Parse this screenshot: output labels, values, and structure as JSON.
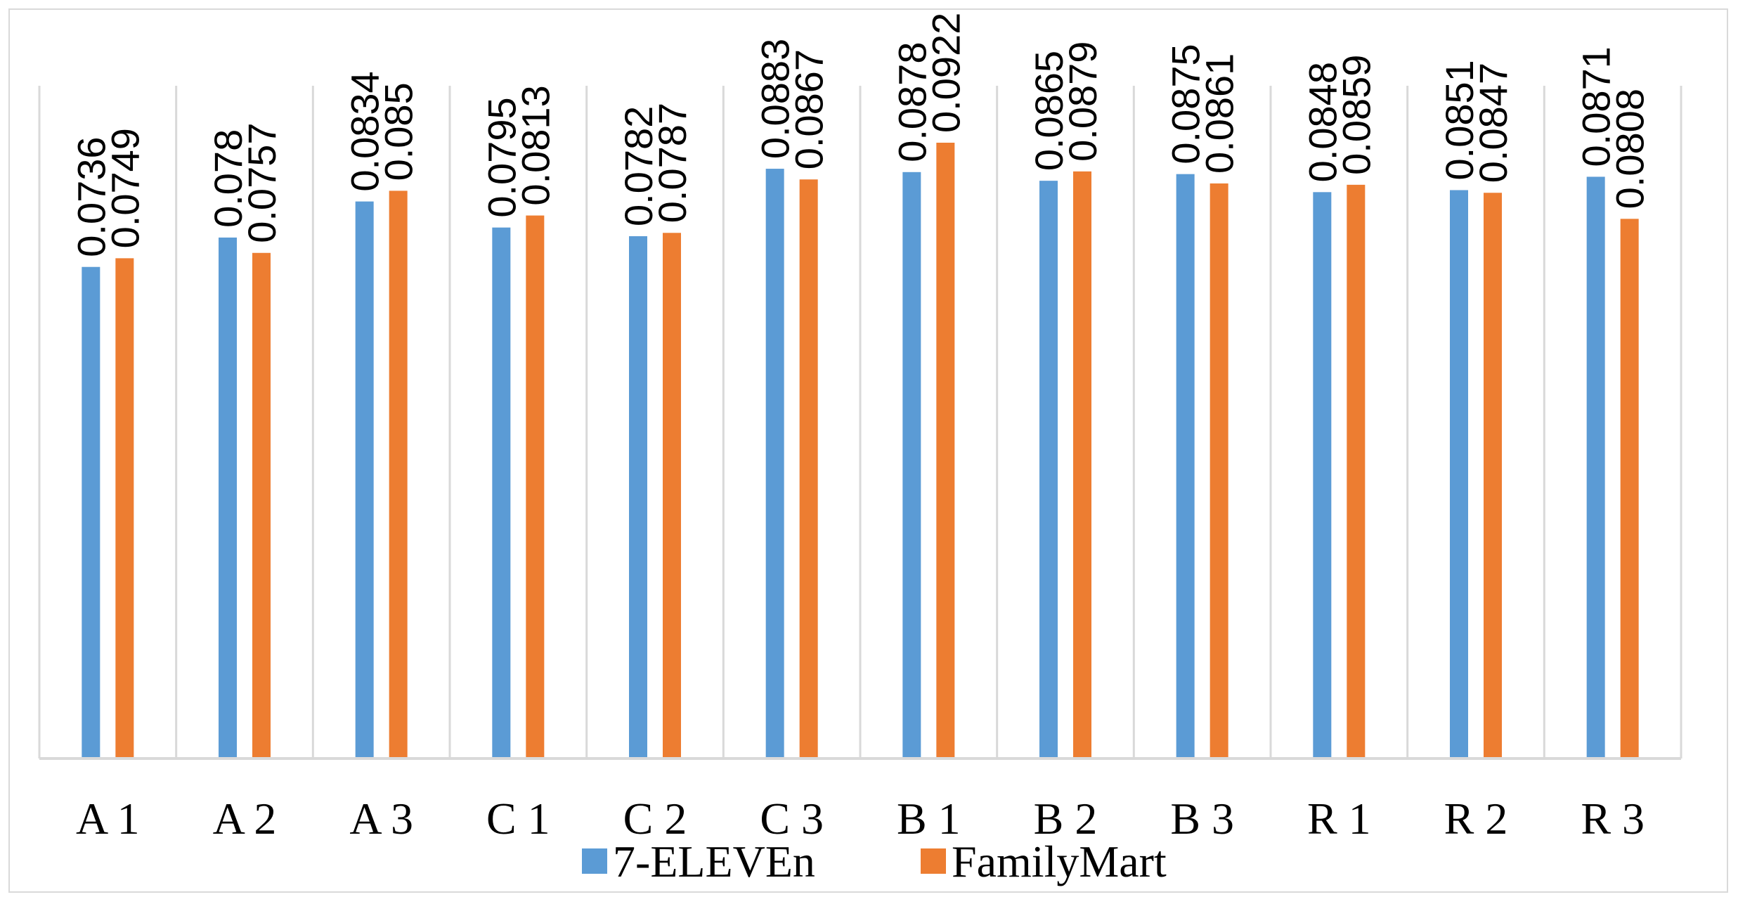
{
  "chart_data": {
    "type": "bar",
    "title": "",
    "xlabel": "",
    "ylabel": "",
    "categories": [
      "A 1",
      "A 2",
      "A 3",
      "C 1",
      "C 2",
      "C 3",
      "B 1",
      "B 2",
      "B 3",
      "R 1",
      "R 2",
      "R 3"
    ],
    "series": [
      {
        "name": "7-ELEVEn",
        "color": "#5b9bd5",
        "values": [
          0.0736,
          0.078,
          0.0834,
          0.0795,
          0.0782,
          0.0883,
          0.0878,
          0.0865,
          0.0875,
          0.0848,
          0.0851,
          0.0871
        ],
        "labels": [
          "0.0736",
          "0.078",
          "0.0834",
          "0.0795",
          "0.0782",
          "0.0883",
          "0.0878",
          "0.0865",
          "0.0875",
          "0.0848",
          "0.0851",
          "0.0871"
        ]
      },
      {
        "name": "FamilyMart",
        "color": "#ed7d31",
        "values": [
          0.0749,
          0.0757,
          0.085,
          0.0813,
          0.0787,
          0.0867,
          0.0922,
          0.0879,
          0.0861,
          0.0859,
          0.0847,
          0.0808
        ],
        "labels": [
          "0.0749",
          "0.0757",
          "0.085",
          "0.0813",
          "0.0787",
          "0.0867",
          "0.0922",
          "0.0879",
          "0.0861",
          "0.0859",
          "0.0847",
          "0.0808"
        ]
      }
    ],
    "ylim": [
      0,
      0.0922
    ],
    "grid": "vertical",
    "legend": "bottom-center",
    "gridline_color": "#d9d9d9",
    "axis_color": "#d9d9d9"
  }
}
